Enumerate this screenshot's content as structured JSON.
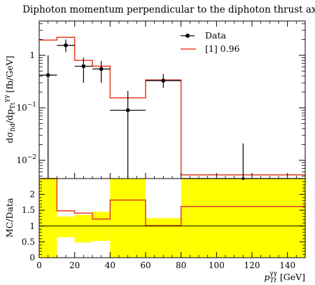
{
  "chart_data": {
    "type": "line",
    "title": "Diphoton momentum perpendicular to the diphoton thrust axis",
    "xlabel": {
      "main": "p",
      "sub": "Tt",
      "sup": "γγ",
      "unit": "[GeV]"
    },
    "ylabel": {
      "prefix": "dσ",
      "prefix_sub": "fid",
      "middle": "/dp",
      "middle_sub": "Tt",
      "middle_sup": "γγ",
      "unit": "[fb/GeV]"
    },
    "ratio_ylabel": "MC/Data",
    "xlim": [
      0,
      150
    ],
    "main_ylim": [
      0.0045,
      4.5
    ],
    "main_yscale": "log",
    "ratio_ylim": [
      0,
      2.5
    ],
    "x_ticks": [
      "0",
      "20",
      "40",
      "60",
      "80",
      "100",
      "120",
      "140"
    ],
    "x_tick_values": [
      0,
      20,
      40,
      60,
      80,
      100,
      120,
      140
    ],
    "main_y_ticks": [
      {
        "value": 1,
        "label": "1"
      },
      {
        "value": 0.1,
        "label": "10",
        "exp": "−1"
      },
      {
        "value": 0.01,
        "label": "10",
        "exp": "−2"
      }
    ],
    "ratio_y_ticks": [
      "0",
      "0.5",
      "1",
      "1.5",
      "2"
    ],
    "ratio_y_tick_values": [
      0,
      0.5,
      1,
      1.5,
      2
    ],
    "bin_edges": [
      0,
      10,
      20,
      30,
      40,
      60,
      80,
      150
    ],
    "series": [
      {
        "name": "Data",
        "color": "#000000",
        "points": [
          {
            "x": 5,
            "y": 0.42,
            "xerr": 5,
            "ylo": 0.0045,
            "yhi": 1.0
          },
          {
            "x": 15,
            "y": 1.55,
            "xerr": 5,
            "ylo": 1.15,
            "yhi": 2.0
          },
          {
            "x": 25,
            "y": 0.62,
            "xerr": 5,
            "ylo": 0.3,
            "yhi": 0.9
          },
          {
            "x": 35,
            "y": 0.55,
            "xerr": 5,
            "ylo": 0.3,
            "yhi": 0.78
          },
          {
            "x": 50,
            "y": 0.09,
            "xerr": 10,
            "ylo": 0.0045,
            "yhi": 0.21
          },
          {
            "x": 70,
            "y": 0.33,
            "xerr": 10,
            "ylo": 0.24,
            "yhi": 0.44
          },
          {
            "x": 115,
            "y": 0.0035,
            "xerr": 35,
            "ylo": 0.0035,
            "yhi": 0.021
          }
        ]
      },
      {
        "name": "[1] 0.96",
        "color": "#e8442a",
        "values": [
          1.95,
          2.2,
          0.8,
          0.62,
          0.155,
          0.34,
          0.0053
        ]
      }
    ],
    "ratio": {
      "mc_values": [
        2.5,
        1.48,
        1.41,
        1.22,
        1.82,
        1.01,
        1.62
      ],
      "band_low": [
        0,
        0.65,
        0.48,
        0.53,
        0,
        0,
        0
      ],
      "band_high": [
        2.5,
        1.3,
        1.35,
        1.45,
        2.5,
        1.25,
        2.5
      ],
      "band_color": "#ffff00",
      "reference": 1
    }
  }
}
